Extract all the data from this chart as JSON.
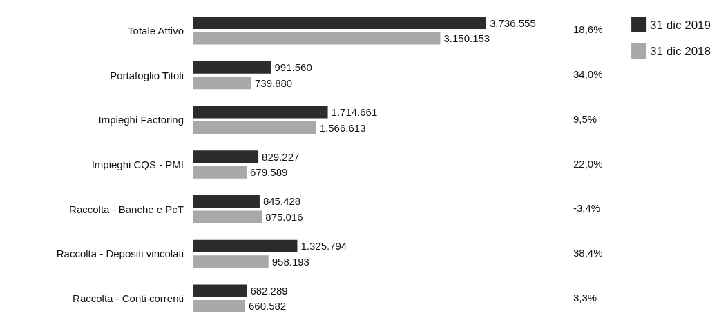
{
  "chart_data": {
    "type": "bar",
    "orientation": "horizontal",
    "categories": [
      "Totale Attivo",
      "Portafoglio Titoli",
      "Impieghi Factoring",
      "Impieghi CQS - PMI",
      "Raccolta - Banche e PcT",
      "Raccolta - Depositi vincolati",
      "Raccolta - Conti correnti"
    ],
    "series": [
      {
        "name": "31 dic 2019",
        "color": "#2b2b2b",
        "values": [
          3736555,
          991560,
          1714661,
          829227,
          845428,
          1325794,
          682289
        ],
        "value_labels": [
          "3.736.555",
          "991.560",
          "1.714.661",
          "829.227",
          "845.428",
          "1.325.794",
          "682.289"
        ]
      },
      {
        "name": "31 dic 2018",
        "color": "#a9a9a9",
        "values": [
          3150153,
          739880,
          1566613,
          679589,
          875016,
          958193,
          660582
        ],
        "value_labels": [
          "3.150.153",
          "739.880",
          "1.566.613",
          "679.589",
          "875.016",
          "958.193",
          "660.582"
        ]
      }
    ],
    "annotations": [
      "18,6%",
      "34,0%",
      "9,5%",
      "22,0%",
      "-3,4%",
      "38,4%",
      "3,3%"
    ],
    "legend": "right",
    "grid": false
  }
}
